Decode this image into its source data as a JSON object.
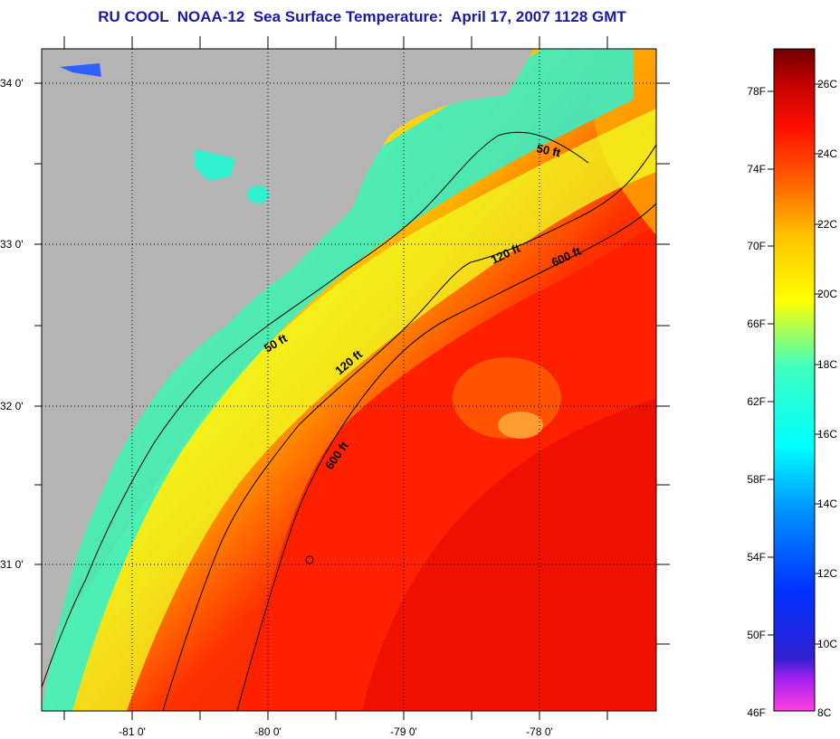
{
  "title": "RU COOL  NOAA-12  Sea Surface Temperature:  April 17, 2007 1128 GMT",
  "map": {
    "lat_labels": [
      "34 0'",
      "33 0'",
      "32 0'",
      "31 0'"
    ],
    "lon_labels": [
      "-81 0'",
      "-80 0'",
      "-79 0'",
      "-78 0'"
    ],
    "contours": [
      {
        "name": "50 ft"
      },
      {
        "name": "120 ft"
      },
      {
        "name": "600 ft"
      }
    ],
    "contour_labels": [
      "50 ft",
      "120 ft",
      "600 ft",
      "50 ft",
      "120 ft",
      "600 ft"
    ],
    "colors": {
      "land": "#b4b4b4",
      "contour": "#000000"
    }
  },
  "colorbar": {
    "fahrenheit_labels": [
      "78F",
      "74F",
      "70F",
      "66F",
      "62F",
      "58F",
      "54F",
      "50F",
      "46F"
    ],
    "celsius_labels": [
      "26C",
      "24C",
      "22C",
      "20C",
      "18C",
      "16C",
      "14C",
      "12C",
      "10C",
      "8C"
    ],
    "colors": [
      "#ff40e0",
      "#a020f0",
      "#3020d0",
      "#0030ff",
      "#0090ff",
      "#00ffff",
      "#40ffc0",
      "#ffff00",
      "#ffc000",
      "#ff6000",
      "#ff1000",
      "#c00000",
      "#700000"
    ]
  }
}
